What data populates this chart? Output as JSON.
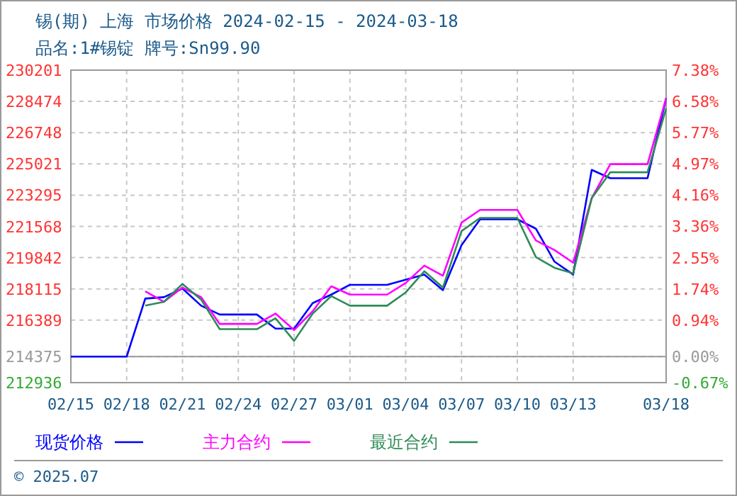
{
  "chart_data": {
    "type": "line",
    "title": "锡(期) 上海 市场价格 2024-02-15 - 2024-03-18",
    "subtitle": "品名:1#锡锭 牌号:Sn99.90",
    "xlim": [
      "2024-02-15",
      "2024-03-18"
    ],
    "xticks": [
      {
        "value": "2024-02-15",
        "label": "02/15"
      },
      {
        "value": "2024-02-18",
        "label": "02/18"
      },
      {
        "value": "2024-02-21",
        "label": "02/21"
      },
      {
        "value": "2024-02-24",
        "label": "02/24"
      },
      {
        "value": "2024-02-27",
        "label": "02/27"
      },
      {
        "value": "2024-03-01",
        "label": "03/01"
      },
      {
        "value": "2024-03-04",
        "label": "03/04"
      },
      {
        "value": "2024-03-07",
        "label": "03/07"
      },
      {
        "value": "2024-03-10",
        "label": "03/10"
      },
      {
        "value": "2024-03-13",
        "label": "03/13"
      },
      {
        "value": "2024-03-18",
        "label": "03/18"
      }
    ],
    "ylim": [
      212936,
      230201
    ],
    "yticks": [
      212936,
      214375,
      216389,
      218115,
      219842,
      221568,
      223295,
      225021,
      226748,
      228474,
      230201
    ],
    "y2lim": [
      -0.67,
      7.38
    ],
    "y2ticks": [
      {
        "value": -0.67,
        "label": "-0.67%"
      },
      {
        "value": 0,
        "label": "0.00%"
      },
      {
        "value": 0.94,
        "label": "0.94%"
      },
      {
        "value": 1.74,
        "label": "1.74%"
      },
      {
        "value": 2.55,
        "label": "2.55%"
      },
      {
        "value": 3.36,
        "label": "3.36%"
      },
      {
        "value": 4.16,
        "label": "4.16%"
      },
      {
        "value": 4.97,
        "label": "4.97%"
      },
      {
        "value": 5.77,
        "label": "5.77%"
      },
      {
        "value": 6.58,
        "label": "6.58%"
      },
      {
        "value": 7.38,
        "label": "7.38%"
      }
    ],
    "ref_lines": [
      {
        "axis": "y",
        "value": 214375,
        "color": "#999999"
      }
    ],
    "grid": true,
    "legend": "bottom",
    "line_style": "solid",
    "series": [
      {
        "name": "现货价格",
        "color": "#0000ff",
        "x": [
          "2024-02-15",
          "2024-02-18",
          "2024-02-19",
          "2024-02-20",
          "2024-02-21",
          "2024-02-22",
          "2024-02-23",
          "2024-02-25",
          "2024-02-26",
          "2024-02-27",
          "2024-02-28",
          "2024-02-29",
          "2024-03-01",
          "2024-03-03",
          "2024-03-04",
          "2024-03-05",
          "2024-03-06",
          "2024-03-07",
          "2024-03-08",
          "2024-03-10",
          "2024-03-11",
          "2024-03-12",
          "2024-03-13",
          "2024-03-14",
          "2024-03-15",
          "2024-03-17",
          "2024-03-18"
        ],
        "values": [
          214375,
          214375,
          217580,
          217660,
          218130,
          217190,
          216700,
          216700,
          215920,
          215920,
          217330,
          217800,
          218340,
          218340,
          218620,
          218910,
          218050,
          220530,
          221960,
          221960,
          221440,
          219620,
          218910,
          224690,
          224230,
          224230,
          228650
        ]
      },
      {
        "name": "主力合约",
        "color": "#ff00ff",
        "x": [
          "2024-02-19",
          "2024-02-20",
          "2024-02-21",
          "2024-02-22",
          "2024-02-23",
          "2024-02-25",
          "2024-02-26",
          "2024-02-27",
          "2024-02-28",
          "2024-02-29",
          "2024-03-01",
          "2024-03-03",
          "2024-03-04",
          "2024-03-05",
          "2024-03-06",
          "2024-03-07",
          "2024-03-08",
          "2024-03-10",
          "2024-03-11",
          "2024-03-12",
          "2024-03-13",
          "2024-03-14",
          "2024-03-15",
          "2024-03-17",
          "2024-03-18"
        ],
        "values": [
          217980,
          217400,
          218190,
          217660,
          216180,
          216180,
          216750,
          215840,
          216880,
          218260,
          217800,
          217800,
          218440,
          219400,
          218840,
          221780,
          222480,
          222480,
          220790,
          220260,
          219560,
          223130,
          225010,
          225010,
          228650
        ]
      },
      {
        "name": "最近合约",
        "color": "#2e8b57",
        "x": [
          "2024-02-19",
          "2024-02-20",
          "2024-02-21",
          "2024-02-22",
          "2024-02-23",
          "2024-02-25",
          "2024-02-26",
          "2024-02-27",
          "2024-02-28",
          "2024-02-29",
          "2024-03-01",
          "2024-03-03",
          "2024-03-04",
          "2024-03-05",
          "2024-03-06",
          "2024-03-07",
          "2024-03-08",
          "2024-03-10",
          "2024-03-11",
          "2024-03-12",
          "2024-03-13",
          "2024-03-14",
          "2024-03-15",
          "2024-03-17",
          "2024-03-18"
        ],
        "values": [
          217190,
          217400,
          218390,
          217530,
          215890,
          215890,
          216490,
          215240,
          216750,
          217720,
          217190,
          217190,
          217920,
          219090,
          218190,
          221310,
          222040,
          222040,
          219870,
          219280,
          218970,
          223130,
          224560,
          224560,
          228080
        ]
      }
    ],
    "annotations": [
      "© 2025.07"
    ]
  }
}
